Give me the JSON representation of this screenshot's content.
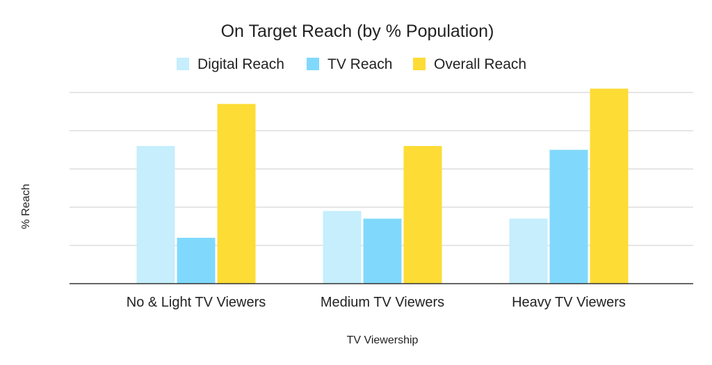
{
  "chart_data": {
    "type": "bar",
    "title": "On Target Reach (by % Population)",
    "xlabel": "TV Viewership",
    "ylabel": "% Reach",
    "categories": [
      "No & Light TV Viewers",
      "Medium TV Viewers",
      "Heavy TV Viewers"
    ],
    "series": [
      {
        "name": "Digital Reach",
        "color": "#c6eefc",
        "values": [
          36,
          19,
          17
        ]
      },
      {
        "name": "TV Reach",
        "color": "#80d9fc",
        "values": [
          12,
          17,
          35
        ]
      },
      {
        "name": "Overall Reach",
        "color": "#fddc35",
        "values": [
          47,
          36,
          51
        ]
      }
    ],
    "ylim": [
      0,
      50
    ],
    "y_gridlines": [
      0,
      10,
      20,
      30,
      40,
      50
    ],
    "y_tick_labels_shown": false,
    "grid": true,
    "legend_position": "top-center"
  }
}
